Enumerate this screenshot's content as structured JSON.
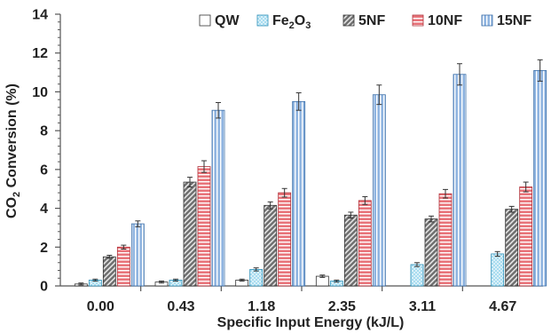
{
  "chart_data": {
    "type": "bar",
    "xlabel": "Specific Input Energy (kJ/L)",
    "ylabel_main": "CO",
    "ylabel_sub": "2",
    "ylabel_tail": " Conversion (%)",
    "ylim": [
      0,
      14
    ],
    "yticks": [
      0,
      2,
      4,
      6,
      8,
      10,
      12,
      14
    ],
    "categories": [
      "0.00",
      "0.43",
      "1.18",
      "2.35",
      "3.11",
      "4.67"
    ],
    "legend_position": "top-right",
    "grid": false,
    "series": [
      {
        "name": "QW",
        "name_main": "QW",
        "name_sub": "",
        "name_tail": "",
        "values": [
          0.1,
          0.2,
          0.3,
          0.5,
          0.0,
          0.0
        ],
        "errors": [
          0.05,
          0.05,
          0.05,
          0.06,
          0.0,
          0.0
        ],
        "color": "#ffffff",
        "pattern": "none"
      },
      {
        "name": "Fe2O3",
        "name_main": "Fe",
        "name_sub": "2",
        "name_tail": "O",
        "name_sub2": "3",
        "values": [
          0.3,
          0.3,
          0.85,
          0.25,
          1.1,
          1.65
        ],
        "errors": [
          0.05,
          0.05,
          0.08,
          0.05,
          0.1,
          0.12
        ],
        "color": "#a8dcf0",
        "pattern": "dots"
      },
      {
        "name": "5NF",
        "name_main": "5NF",
        "name_sub": "",
        "name_tail": "",
        "values": [
          1.5,
          5.35,
          4.15,
          3.65,
          3.45,
          3.95
        ],
        "errors": [
          0.08,
          0.25,
          0.18,
          0.15,
          0.15,
          0.15
        ],
        "color": "#8a8a8a",
        "pattern": "diag"
      },
      {
        "name": "10NF",
        "name_main": "10NF",
        "name_sub": "",
        "name_tail": "",
        "values": [
          2.0,
          6.15,
          4.8,
          4.4,
          4.75,
          5.1
        ],
        "errors": [
          0.1,
          0.3,
          0.22,
          0.2,
          0.22,
          0.25
        ],
        "color": "#e8747a",
        "pattern": "hstripe"
      },
      {
        "name": "15NF",
        "name_main": "15NF",
        "name_sub": "",
        "name_tail": "",
        "values": [
          3.2,
          9.05,
          9.5,
          9.85,
          10.9,
          11.1
        ],
        "errors": [
          0.15,
          0.4,
          0.45,
          0.5,
          0.55,
          0.55
        ],
        "color": "#8fb4e0",
        "pattern": "vstripe"
      }
    ]
  }
}
